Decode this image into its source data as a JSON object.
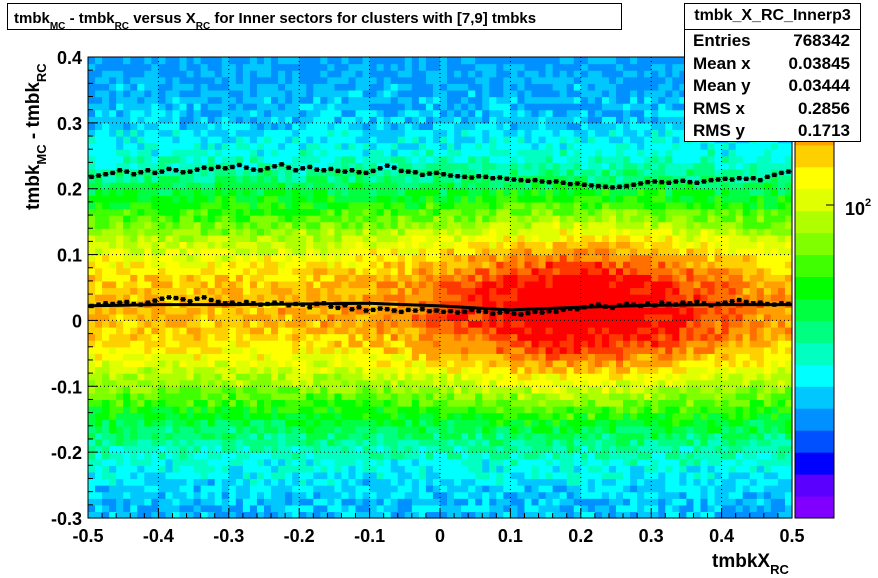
{
  "chart_data": {
    "type": "heatmap",
    "title_parts": [
      "tmbk",
      "MC",
      " - tmbk",
      "RC",
      " versus X",
      "RC",
      " for Inner sectors for clusters with [7,9] tmbks"
    ],
    "xlabel": "tmbkX",
    "xlabel_sub": "RC",
    "ylabel": "tmbk",
    "ylabel_sub1": "MC",
    "ylabel_mid": " - tmbk",
    "ylabel_sub2": "RC",
    "xlim": [
      -0.5,
      0.5
    ],
    "ylim": [
      -0.3,
      0.4
    ],
    "x_ticks": [
      "-0.5",
      "-0.4",
      "-0.3",
      "-0.2",
      "-0.1",
      "0",
      "0.1",
      "0.2",
      "0.3",
      "0.4",
      "0.5"
    ],
    "y_ticks": [
      "-0.3",
      "-0.2",
      "-0.1",
      "0",
      "0.1",
      "0.2",
      "0.3",
      "0.4"
    ],
    "z_scale": "log",
    "z_label_base": "10",
    "z_label_exp": "2",
    "grid": true,
    "series": [
      {
        "values_x": [
          -0.495,
          -0.485,
          -0.475,
          -0.465,
          -0.455,
          -0.445,
          -0.435,
          -0.425,
          -0.415,
          -0.405,
          -0.395,
          -0.385,
          -0.375,
          -0.365,
          -0.355,
          -0.345,
          -0.335,
          -0.325,
          -0.315,
          -0.305,
          -0.295,
          -0.285,
          -0.275,
          -0.265,
          -0.255,
          -0.245,
          -0.235,
          -0.225,
          -0.215,
          -0.205,
          -0.195,
          -0.185,
          -0.175,
          -0.165,
          -0.155,
          -0.145,
          -0.135,
          -0.125,
          -0.115,
          -0.105,
          -0.095,
          -0.085,
          -0.075,
          -0.065,
          -0.055,
          -0.045,
          -0.035,
          -0.025,
          -0.015,
          -0.005,
          0.005,
          0.015,
          0.025,
          0.035,
          0.045,
          0.055,
          0.065,
          0.075,
          0.085,
          0.095,
          0.105,
          0.115,
          0.125,
          0.135,
          0.145,
          0.155,
          0.165,
          0.175,
          0.185,
          0.195,
          0.205,
          0.215,
          0.225,
          0.235,
          0.245,
          0.255,
          0.265,
          0.275,
          0.285,
          0.295,
          0.305,
          0.315,
          0.325,
          0.335,
          0.345,
          0.355,
          0.365,
          0.375,
          0.385,
          0.395,
          0.405,
          0.415,
          0.425,
          0.435,
          0.445,
          0.455,
          0.465,
          0.475,
          0.485,
          0.495
        ],
        "values_y": [
          0.218,
          0.22,
          0.222,
          0.224,
          0.228,
          0.226,
          0.222,
          0.225,
          0.228,
          0.224,
          0.226,
          0.23,
          0.228,
          0.225,
          0.226,
          0.229,
          0.232,
          0.23,
          0.233,
          0.231,
          0.233,
          0.236,
          0.232,
          0.229,
          0.228,
          0.231,
          0.234,
          0.237,
          0.232,
          0.228,
          0.231,
          0.233,
          0.229,
          0.228,
          0.23,
          0.227,
          0.226,
          0.228,
          0.225,
          0.224,
          0.227,
          0.231,
          0.235,
          0.232,
          0.227,
          0.226,
          0.225,
          0.221,
          0.223,
          0.224,
          0.222,
          0.22,
          0.219,
          0.218,
          0.217,
          0.219,
          0.218,
          0.216,
          0.217,
          0.215,
          0.214,
          0.213,
          0.212,
          0.213,
          0.211,
          0.21,
          0.211,
          0.209,
          0.207,
          0.208,
          0.206,
          0.205,
          0.204,
          0.203,
          0.202,
          0.203,
          0.204,
          0.206,
          0.208,
          0.21,
          0.211,
          0.21,
          0.209,
          0.211,
          0.212,
          0.21,
          0.209,
          0.211,
          0.213,
          0.214,
          0.215,
          0.214,
          0.216,
          0.215,
          0.216,
          0.213,
          0.218,
          0.221,
          0.224,
          0.226
        ]
      },
      {
        "values_x": [
          -0.495,
          -0.485,
          -0.475,
          -0.465,
          -0.455,
          -0.445,
          -0.435,
          -0.425,
          -0.415,
          -0.405,
          -0.395,
          -0.385,
          -0.375,
          -0.365,
          -0.355,
          -0.345,
          -0.335,
          -0.325,
          -0.315,
          -0.305,
          -0.295,
          -0.285,
          -0.275,
          -0.265,
          -0.255,
          -0.245,
          -0.235,
          -0.225,
          -0.215,
          -0.205,
          -0.195,
          -0.185,
          -0.175,
          -0.165,
          -0.155,
          -0.145,
          -0.135,
          -0.125,
          -0.115,
          -0.105,
          -0.095,
          -0.085,
          -0.075,
          -0.065,
          -0.055,
          -0.045,
          -0.035,
          -0.025,
          -0.015,
          -0.005,
          0.005,
          0.015,
          0.025,
          0.035,
          0.045,
          0.055,
          0.065,
          0.075,
          0.085,
          0.095,
          0.105,
          0.115,
          0.125,
          0.135,
          0.145,
          0.155,
          0.165,
          0.175,
          0.185,
          0.195,
          0.205,
          0.215,
          0.225,
          0.235,
          0.245,
          0.255,
          0.265,
          0.275,
          0.285,
          0.295,
          0.305,
          0.315,
          0.325,
          0.335,
          0.345,
          0.355,
          0.365,
          0.375,
          0.385,
          0.395,
          0.405,
          0.415,
          0.425,
          0.435,
          0.445,
          0.455,
          0.465,
          0.475,
          0.485,
          0.495
        ],
        "values_y": [
          0.022,
          0.024,
          0.026,
          0.025,
          0.027,
          0.028,
          0.025,
          0.024,
          0.027,
          0.03,
          0.033,
          0.035,
          0.034,
          0.032,
          0.029,
          0.033,
          0.035,
          0.031,
          0.028,
          0.026,
          0.027,
          0.025,
          0.028,
          0.026,
          0.024,
          0.025,
          0.027,
          0.026,
          0.023,
          0.025,
          0.024,
          0.02,
          0.025,
          0.026,
          0.021,
          0.019,
          0.023,
          0.017,
          0.02,
          0.015,
          0.016,
          0.018,
          0.017,
          0.015,
          0.013,
          0.016,
          0.015,
          0.017,
          0.014,
          0.015,
          0.013,
          0.014,
          0.012,
          0.013,
          0.016,
          0.014,
          0.013,
          0.01,
          0.012,
          0.013,
          0.01,
          0.009,
          0.011,
          0.013,
          0.012,
          0.014,
          0.013,
          0.016,
          0.018,
          0.017,
          0.02,
          0.022,
          0.024,
          0.021,
          0.019,
          0.023,
          0.025,
          0.024,
          0.022,
          0.026,
          0.023,
          0.027,
          0.025,
          0.024,
          0.027,
          0.026,
          0.028,
          0.026,
          0.023,
          0.025,
          0.027,
          0.029,
          0.031,
          0.028,
          0.026,
          0.027,
          0.025,
          0.024,
          0.026,
          0.025
        ]
      },
      {
        "fit_x": [
          -0.5,
          -0.4,
          -0.3,
          -0.2,
          -0.1,
          0.0,
          0.1,
          0.2,
          0.3,
          0.4,
          0.5
        ],
        "fit_y": [
          0.022,
          0.024,
          0.024,
          0.025,
          0.026,
          0.022,
          0.016,
          0.02,
          0.023,
          0.024,
          0.024
        ]
      }
    ]
  },
  "stats": {
    "name": "tmbk_X_RC_Innerp3",
    "rows": [
      {
        "label": "Entries",
        "value": "768342"
      },
      {
        "label": "Mean x",
        "value": "0.03845"
      },
      {
        "label": "Mean y",
        "value": "0.03444"
      },
      {
        "label": "RMS x",
        "value": "0.2856"
      },
      {
        "label": "RMS y",
        "value": "0.1713"
      }
    ]
  },
  "colors": {
    "palette": [
      "#7f00ff",
      "#5a00ff",
      "#0000ff",
      "#0050ff",
      "#0090ff",
      "#00c8ff",
      "#00ffff",
      "#00ffc0",
      "#00ff80",
      "#00ff40",
      "#00ff00",
      "#40ff00",
      "#80ff00",
      "#b0ff00",
      "#e0ff00",
      "#ffff00",
      "#ffd000",
      "#ffa000",
      "#ff7000",
      "#ff3800",
      "#ff0000"
    ],
    "profile_marker": "#000000",
    "fit_line": "#000000"
  }
}
